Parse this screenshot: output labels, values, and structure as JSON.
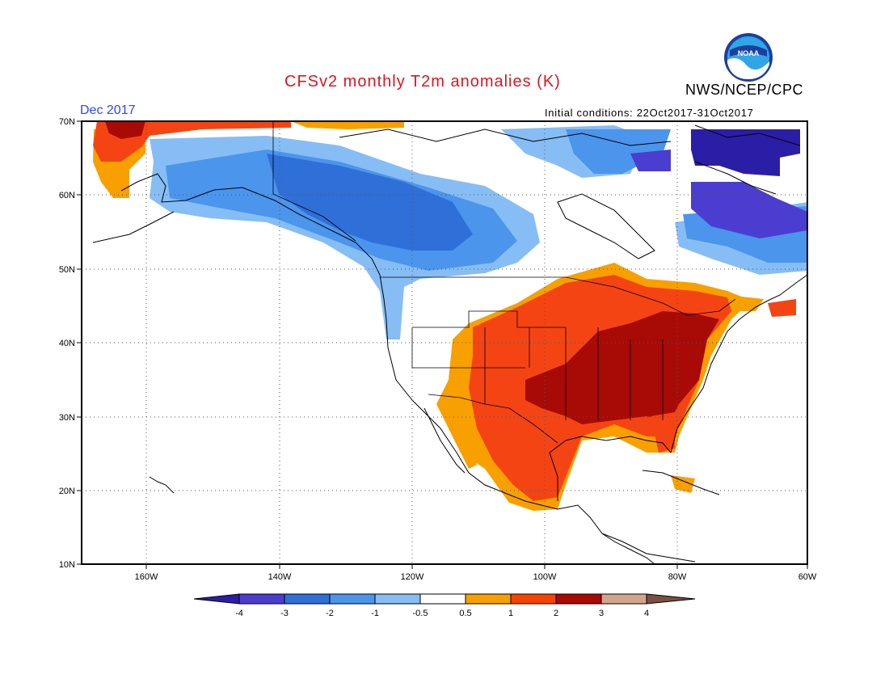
{
  "header": {
    "title": "CFSv2 monthly T2m anomalies (K)",
    "agency": "NWS/NCEP/CPC",
    "logo_text": "NOAA",
    "target_month": "Dec 2017",
    "initial_conditions": "Initial conditions: 22Oct2017-31Oct2017"
  },
  "axes": {
    "lon_ticks": [
      "160W",
      "140W",
      "120W",
      "100W",
      "80W",
      "60W"
    ],
    "lat_ticks": [
      "70N",
      "60N",
      "50N",
      "40N",
      "30N",
      "20N",
      "10N"
    ]
  },
  "colorbar": {
    "labels": [
      "-4",
      "-3",
      "-2",
      "-1",
      "-0.5",
      "0.5",
      "1",
      "2",
      "3",
      "4"
    ],
    "colors": [
      "#2a1ea6",
      "#4b3dd0",
      "#2f6fd8",
      "#4b95ec",
      "#86bdf4",
      "#ffffff",
      "#f8a000",
      "#f84200",
      "#aa0800",
      "#d2a58a",
      "#7a5040"
    ]
  },
  "colors": {
    "title": "#e0141e",
    "month": "#2b45ff",
    "dark_red": "#a80a06",
    "red": "#f54414",
    "orange": "#f8a000",
    "light_blue": "#86bdf4",
    "mid_blue": "#4b95ec",
    "blue": "#2f6fd8",
    "purple": "#4b3dd0",
    "dark_purple": "#2a1ea6"
  }
}
